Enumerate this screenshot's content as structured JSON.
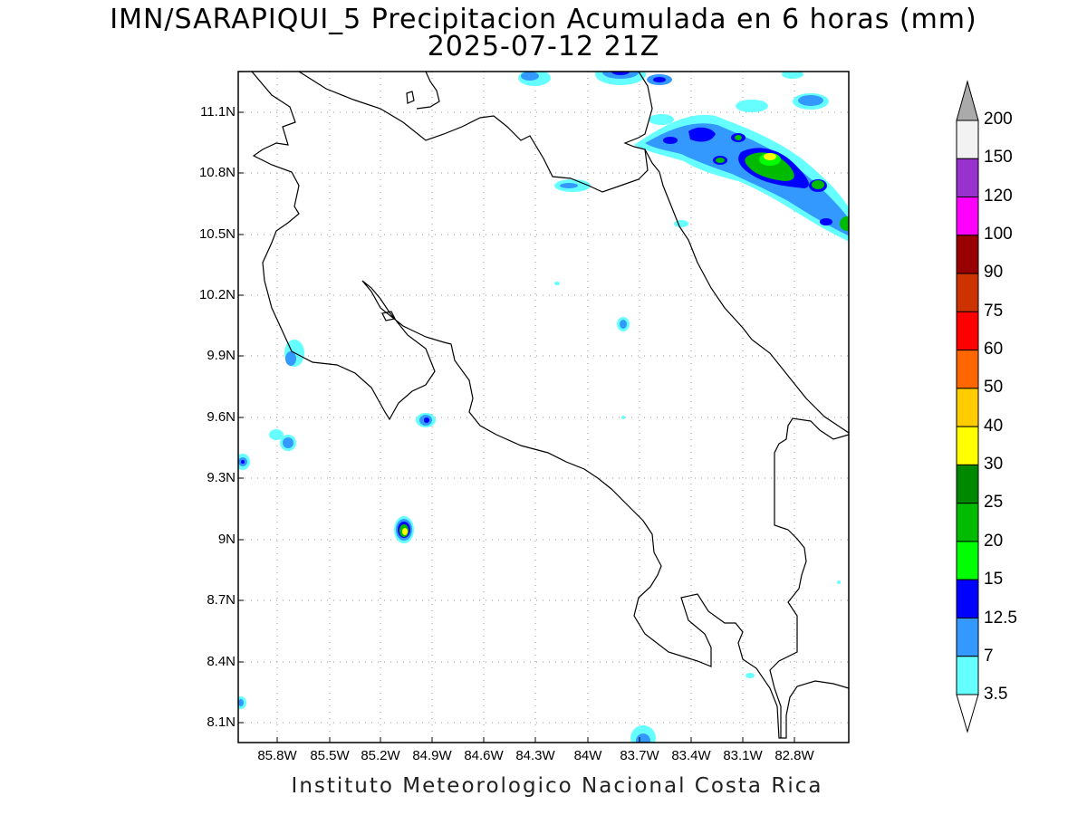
{
  "title": "IMN/SARAPIQUI_5 Precipitacion Acumulada en 6 horas (mm)",
  "subtitle": "2025-07-12 21Z",
  "footer": "Instituto Meteorologico Nacional Costa Rica",
  "lat_labels": [
    "11.1N",
    "10.8N",
    "10.5N",
    "10.2N",
    "9.9N",
    "9.6N",
    "9.3N",
    "9N",
    "8.7N",
    "8.4N",
    "8.1N"
  ],
  "lon_labels": [
    "85.8W",
    "85.5W",
    "85.2W",
    "84.9W",
    "84.6W",
    "84.3W",
    "84W",
    "83.7W",
    "83.4W",
    "83.1W",
    "82.8W"
  ],
  "colorbar": {
    "labels": [
      "200",
      "150",
      "120",
      "100",
      "90",
      "75",
      "60",
      "50",
      "40",
      "30",
      "25",
      "20",
      "15",
      "12.5",
      "7",
      "3.5"
    ],
    "colors": [
      "#f2f2f2",
      "#9932cc",
      "#ff00ff",
      "#990000",
      "#cc3300",
      "#ff0000",
      "#ff6600",
      "#ffcc00",
      "#ffff00",
      "#008800",
      "#00bb00",
      "#00ff00",
      "#0000ff",
      "#3399ff",
      "#66ffff"
    ],
    "over_color": "#aaaaaa"
  }
}
